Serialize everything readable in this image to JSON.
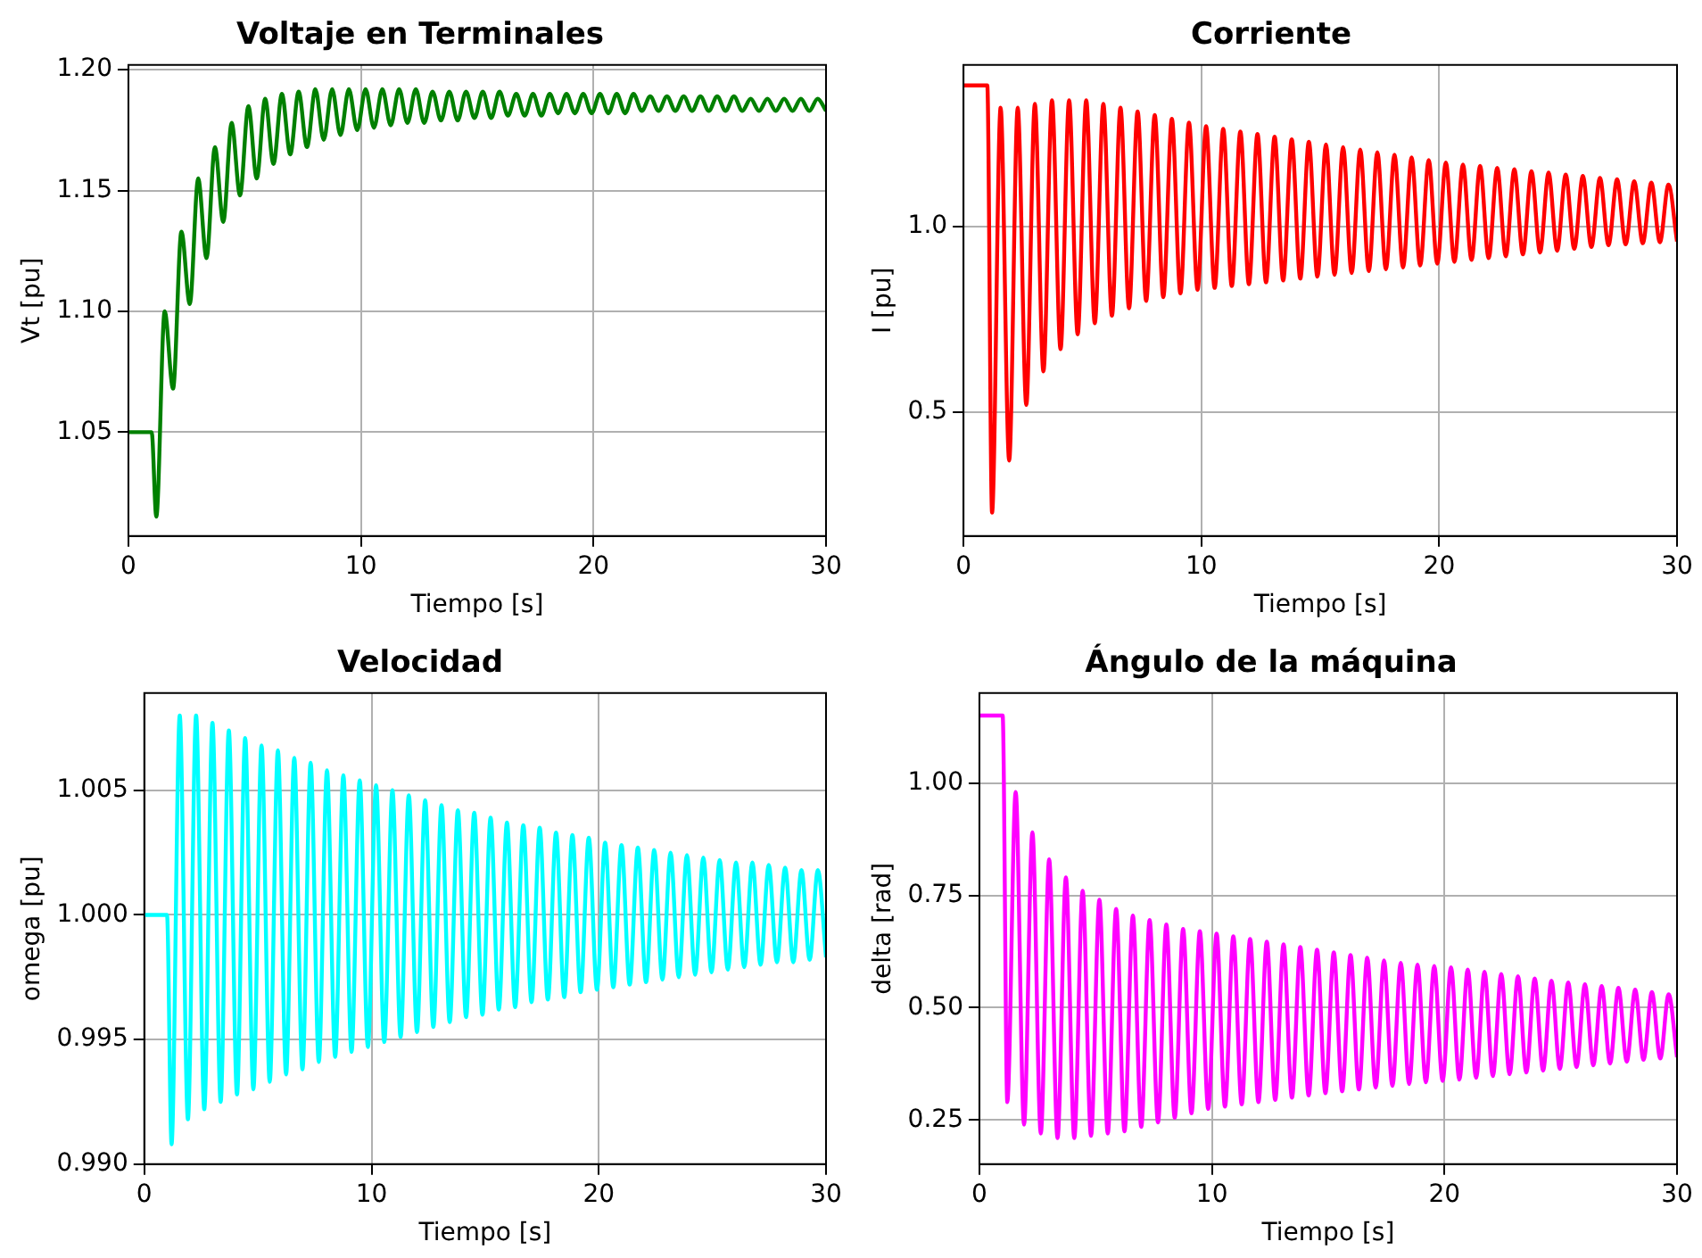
{
  "chart_data": [
    {
      "type": "line",
      "title": "Voltaje en Terminales",
      "xlabel": "Tiempo [s]",
      "ylabel": "Vt [pu]",
      "marker": "none",
      "grid": true,
      "x": [
        0,
        1.0,
        1.2,
        1.56,
        1.92,
        2.28,
        2.64,
        3.0,
        3.36,
        3.72,
        4.08,
        4.44,
        4.8,
        5.16,
        5.52,
        5.88,
        6.24,
        6.6,
        6.96,
        7.32,
        7.68,
        8.04,
        8.4,
        8.76,
        9.12,
        9.48,
        9.84,
        10.2,
        10.56,
        10.92,
        11.28,
        11.64,
        12.0,
        12.36,
        12.72,
        13.08,
        13.44,
        13.8,
        14.16,
        14.52,
        14.88,
        15.24,
        15.6,
        15.96,
        16.32,
        16.68,
        17.04,
        17.4,
        17.76,
        18.12,
        18.48,
        18.84,
        19.2,
        19.56,
        19.92,
        20.28,
        20.64,
        21.0,
        21.36,
        21.72,
        22.08,
        22.44,
        22.8,
        23.16,
        23.52,
        23.88,
        24.24,
        24.6,
        24.96,
        25.32,
        25.68,
        26.04,
        26.4,
        26.76,
        27.12,
        27.48,
        27.84,
        28.2,
        28.56,
        28.92,
        29.28,
        29.64,
        30.0
      ],
      "series": [
        {
          "color": "#008000",
          "values": [
            1.05,
            1.05,
            1.015,
            1.1,
            1.068,
            1.133,
            1.103,
            1.155,
            1.122,
            1.168,
            1.137,
            1.178,
            1.148,
            1.185,
            1.155,
            1.188,
            1.161,
            1.19,
            1.165,
            1.191,
            1.168,
            1.192,
            1.171,
            1.192,
            1.173,
            1.192,
            1.175,
            1.192,
            1.176,
            1.192,
            1.177,
            1.192,
            1.178,
            1.192,
            1.178,
            1.191,
            1.179,
            1.191,
            1.179,
            1.191,
            1.18,
            1.191,
            1.18,
            1.191,
            1.181,
            1.19,
            1.181,
            1.19,
            1.181,
            1.19,
            1.182,
            1.19,
            1.182,
            1.19,
            1.182,
            1.19,
            1.182,
            1.19,
            1.182,
            1.19,
            1.183,
            1.189,
            1.183,
            1.189,
            1.183,
            1.189,
            1.183,
            1.189,
            1.183,
            1.189,
            1.183,
            1.189,
            1.183,
            1.188,
            1.183,
            1.188,
            1.183,
            1.188,
            1.183,
            1.188,
            1.183,
            1.188,
            1.183
          ]
        }
      ],
      "xlim": [
        0,
        30
      ],
      "xticks": [
        0,
        10,
        20,
        30
      ],
      "ylim": [
        1.007,
        1.202
      ],
      "yticks": [
        {
          "value": 1.05,
          "label": "1.05"
        },
        {
          "value": 1.1,
          "label": "1.10"
        },
        {
          "value": 1.15,
          "label": "1.15"
        },
        {
          "value": 1.2,
          "label": "1.20"
        }
      ]
    },
    {
      "type": "line",
      "title": "Corriente",
      "xlabel": "Tiempo [s]",
      "ylabel": "I [pu]",
      "marker": "none",
      "grid": true,
      "x": [
        0,
        1.0,
        1.2,
        1.56,
        1.92,
        2.28,
        2.64,
        3.0,
        3.36,
        3.72,
        4.08,
        4.44,
        4.8,
        5.16,
        5.52,
        5.88,
        6.24,
        6.6,
        6.96,
        7.32,
        7.68,
        8.04,
        8.4,
        8.76,
        9.12,
        9.48,
        9.84,
        10.2,
        10.56,
        10.92,
        11.28,
        11.64,
        12.0,
        12.36,
        12.72,
        13.08,
        13.44,
        13.8,
        14.16,
        14.52,
        14.88,
        15.24,
        15.6,
        15.96,
        16.32,
        16.68,
        17.04,
        17.4,
        17.76,
        18.12,
        18.48,
        18.84,
        19.2,
        19.56,
        19.92,
        20.28,
        20.64,
        21.0,
        21.36,
        21.72,
        22.08,
        22.44,
        22.8,
        23.16,
        23.52,
        23.88,
        24.24,
        24.6,
        24.96,
        25.32,
        25.68,
        26.04,
        26.4,
        26.76,
        27.12,
        27.48,
        27.84,
        28.2,
        28.56,
        28.92,
        29.28,
        29.64,
        30.0
      ],
      "series": [
        {
          "color": "#ff0000",
          "values": [
            1.38,
            1.38,
            0.23,
            1.32,
            0.37,
            1.32,
            0.52,
            1.33,
            0.61,
            1.34,
            0.67,
            1.34,
            0.71,
            1.34,
            0.74,
            1.33,
            0.76,
            1.32,
            0.78,
            1.31,
            0.8,
            1.3,
            0.81,
            1.29,
            0.82,
            1.28,
            0.83,
            1.27,
            0.835,
            1.263,
            0.84,
            1.256,
            0.845,
            1.249,
            0.85,
            1.242,
            0.855,
            1.235,
            0.86,
            1.228,
            0.865,
            1.221,
            0.87,
            1.214,
            0.875,
            1.207,
            0.88,
            1.2,
            0.885,
            1.193,
            0.89,
            1.186,
            0.895,
            1.179,
            0.9,
            1.172,
            0.905,
            1.167,
            0.91,
            1.163,
            0.915,
            1.158,
            0.92,
            1.154,
            0.925,
            1.149,
            0.93,
            1.145,
            0.935,
            1.14,
            0.94,
            1.136,
            0.945,
            1.131,
            0.95,
            1.127,
            0.952,
            1.122,
            0.955,
            1.118,
            0.958,
            1.113,
            0.96
          ]
        }
      ],
      "xlim": [
        0,
        30
      ],
      "xticks": [
        0,
        10,
        20,
        30
      ],
      "ylim": [
        0.167,
        1.435
      ],
      "yticks": [
        0.5,
        {
          "value": 1,
          "label": "1.0"
        }
      ]
    },
    {
      "type": "line",
      "title": "Velocidad",
      "xlabel": "Tiempo [s]",
      "ylabel": "omega [pu]",
      "marker": "none",
      "grid": true,
      "x": [
        0,
        1.0,
        1.2,
        1.56,
        1.92,
        2.28,
        2.64,
        3.0,
        3.36,
        3.72,
        4.08,
        4.44,
        4.8,
        5.16,
        5.52,
        5.88,
        6.24,
        6.6,
        6.96,
        7.32,
        7.68,
        8.04,
        8.4,
        8.76,
        9.12,
        9.48,
        9.84,
        10.2,
        10.56,
        10.92,
        11.28,
        11.64,
        12.0,
        12.36,
        12.72,
        13.08,
        13.44,
        13.8,
        14.16,
        14.52,
        14.88,
        15.24,
        15.6,
        15.96,
        16.32,
        16.68,
        17.04,
        17.4,
        17.76,
        18.12,
        18.48,
        18.84,
        19.2,
        19.56,
        19.92,
        20.28,
        20.64,
        21.0,
        21.36,
        21.72,
        22.08,
        22.44,
        22.8,
        23.16,
        23.52,
        23.88,
        24.24,
        24.6,
        24.96,
        25.32,
        25.68,
        26.04,
        26.4,
        26.76,
        27.12,
        27.48,
        27.84,
        28.2,
        28.56,
        28.92,
        29.28,
        29.64,
        30.0
      ],
      "series": [
        {
          "color": "#00ffff",
          "values": [
            1.0,
            1.0,
            0.9908,
            1.008,
            0.9918,
            1.008,
            0.9922,
            1.0077,
            0.9925,
            1.0074,
            0.9928,
            1.0071,
            0.993,
            1.0068,
            0.9933,
            1.0066,
            0.9936,
            1.0063,
            0.9938,
            1.0061,
            0.9941,
            1.0058,
            0.9943,
            1.0056,
            0.9945,
            1.0054,
            0.9947,
            1.0052,
            0.9949,
            1.005,
            0.9951,
            1.0048,
            0.9953,
            1.0046,
            0.9955,
            1.0044,
            0.9957,
            1.0042,
            0.9959,
            1.0041,
            0.996,
            1.0039,
            0.9962,
            1.0037,
            0.9963,
            1.0036,
            0.9965,
            1.0035,
            0.9966,
            1.0033,
            0.9967,
            1.0032,
            0.9969,
            1.0031,
            0.997,
            1.0029,
            0.9971,
            1.0028,
            0.9972,
            1.0027,
            0.9973,
            1.0026,
            0.9974,
            1.0025,
            0.9975,
            1.0024,
            0.9976,
            1.0023,
            0.9977,
            1.0022,
            0.9978,
            1.0021,
            0.9979,
            1.0021,
            0.998,
            1.002,
            0.9981,
            1.0019,
            0.9981,
            1.0018,
            0.9982,
            1.0018,
            0.9983
          ]
        }
      ],
      "xlim": [
        0,
        30
      ],
      "xticks": [
        0,
        10,
        20,
        30
      ],
      "ylim": [
        0.99,
        1.0089
      ],
      "yticks": [
        {
          "value": 0.99,
          "label": "0.990"
        },
        {
          "value": 0.995,
          "label": "0.995"
        },
        {
          "value": 1,
          "label": "1.000"
        },
        {
          "value": 1.005,
          "label": "1.005"
        }
      ]
    },
    {
      "type": "line",
      "title": "Ángulo de la máquina",
      "xlabel": "Tiempo [s]",
      "ylabel": "delta [rad]",
      "marker": "none",
      "grid": true,
      "x": [
        0,
        1.0,
        1.2,
        1.56,
        1.92,
        2.28,
        2.64,
        3.0,
        3.36,
        3.72,
        4.08,
        4.44,
        4.8,
        5.16,
        5.52,
        5.88,
        6.24,
        6.6,
        6.96,
        7.32,
        7.68,
        8.04,
        8.4,
        8.76,
        9.12,
        9.48,
        9.84,
        10.2,
        10.56,
        10.92,
        11.28,
        11.64,
        12.0,
        12.36,
        12.72,
        13.08,
        13.44,
        13.8,
        14.16,
        14.52,
        14.88,
        15.24,
        15.6,
        15.96,
        16.32,
        16.68,
        17.04,
        17.4,
        17.76,
        18.12,
        18.48,
        18.84,
        19.2,
        19.56,
        19.92,
        20.28,
        20.64,
        21.0,
        21.36,
        21.72,
        22.08,
        22.44,
        22.8,
        23.16,
        23.52,
        23.88,
        24.24,
        24.6,
        24.96,
        25.32,
        25.68,
        26.04,
        26.4,
        26.76,
        27.12,
        27.48,
        27.84,
        28.2,
        28.56,
        28.92,
        29.28,
        29.64,
        30.0
      ],
      "series": [
        {
          "color": "#ff00ff",
          "values": [
            1.15,
            1.15,
            0.29,
            0.98,
            0.24,
            0.89,
            0.22,
            0.83,
            0.21,
            0.79,
            0.21,
            0.76,
            0.215,
            0.74,
            0.22,
            0.72,
            0.225,
            0.705,
            0.235,
            0.695,
            0.245,
            0.685,
            0.255,
            0.675,
            0.265,
            0.67,
            0.275,
            0.665,
            0.28,
            0.659,
            0.285,
            0.653,
            0.29,
            0.647,
            0.295,
            0.641,
            0.3,
            0.635,
            0.305,
            0.629,
            0.31,
            0.623,
            0.314,
            0.617,
            0.318,
            0.611,
            0.322,
            0.605,
            0.326,
            0.6,
            0.33,
            0.596,
            0.334,
            0.593,
            0.337,
            0.59,
            0.34,
            0.585,
            0.344,
            0.58,
            0.348,
            0.575,
            0.352,
            0.57,
            0.356,
            0.565,
            0.36,
            0.56,
            0.364,
            0.556,
            0.368,
            0.552,
            0.372,
            0.548,
            0.376,
            0.544,
            0.38,
            0.54,
            0.384,
            0.535,
            0.387,
            0.53,
            0.39
          ]
        }
      ],
      "xlim": [
        0,
        30
      ],
      "xticks": [
        0,
        10,
        20,
        30
      ],
      "ylim": [
        0.152,
        1.2
      ],
      "yticks": [
        0.25,
        {
          "value": 0.5,
          "label": "0.50"
        },
        0.75,
        {
          "value": 1,
          "label": "1.00"
        }
      ]
    }
  ]
}
